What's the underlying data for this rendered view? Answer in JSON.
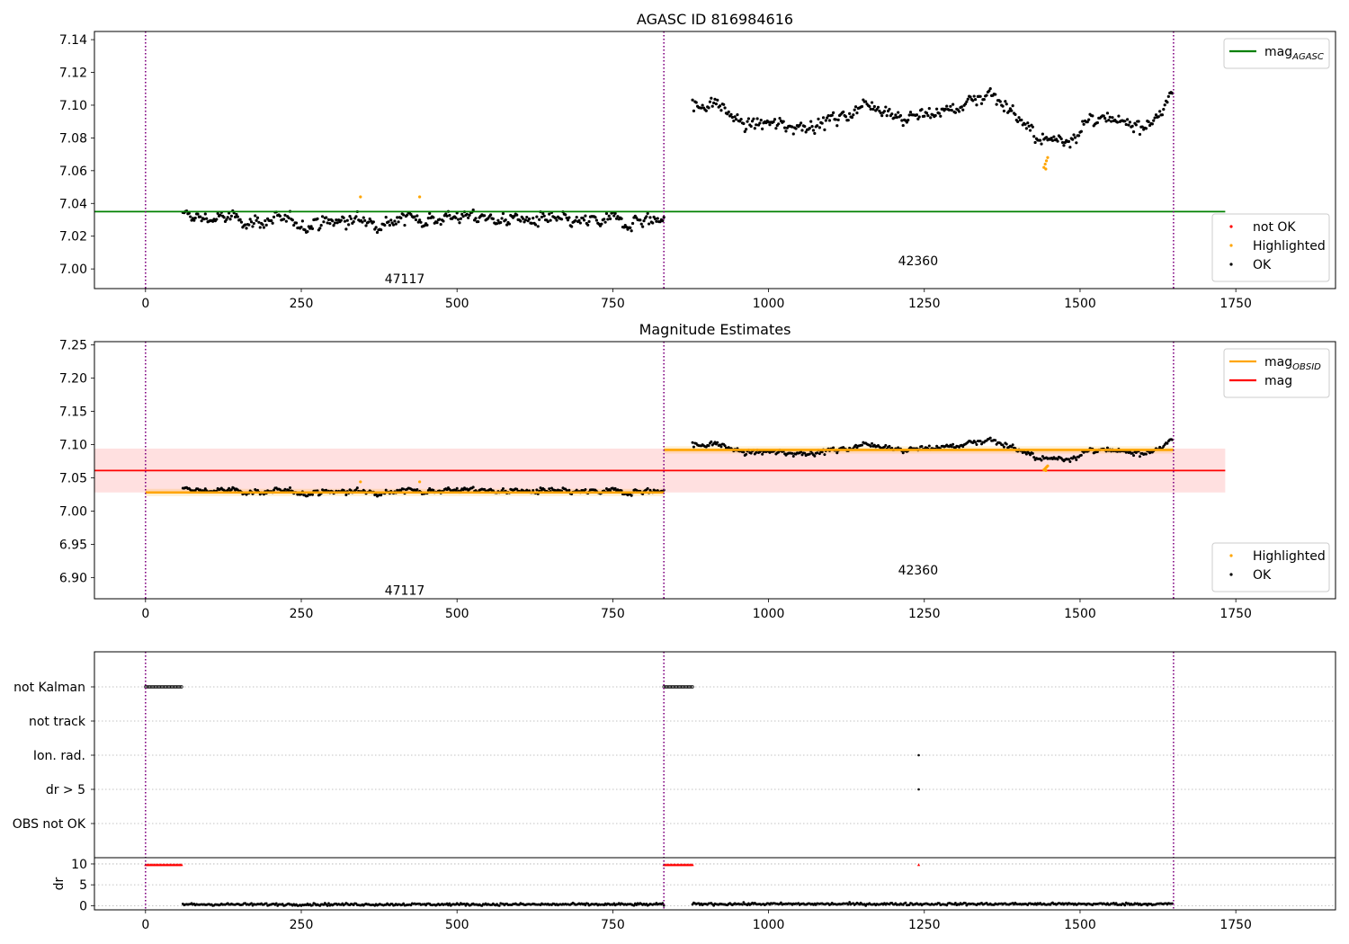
{
  "chart_data": [
    {
      "type": "scatter",
      "title": "AGASC ID 816984616",
      "xlim": [
        -82,
        1910
      ],
      "ylim": [
        6.988,
        7.145
      ],
      "x_ticks": [
        0,
        250,
        500,
        750,
        1000,
        1250,
        1500,
        1750
      ],
      "y_ticks": [
        7.0,
        7.02,
        7.04,
        7.06,
        7.08,
        7.1,
        7.12,
        7.14
      ],
      "y_tick_decimals": 2,
      "obs_boundaries": [
        0,
        832,
        1650
      ],
      "hline": {
        "name": "mag",
        "subscript": "AGASC",
        "value": 7.035,
        "x0": -82,
        "x1": 1733,
        "color": "#008000"
      },
      "obsid_labels": [
        {
          "text": "47117",
          "x": 416,
          "y": 6.994
        },
        {
          "text": "42360",
          "x": 1240,
          "y": 7.005
        }
      ],
      "segments": [
        {
          "x0": 60,
          "x1": 832,
          "center": [
            [
              60,
              7.032
            ],
            [
              250,
              7.028
            ],
            [
              500,
              7.032
            ],
            [
              700,
              7.028
            ],
            [
              832,
              7.031
            ]
          ],
          "noise": 0.005,
          "step": 2
        },
        {
          "x0": 878,
          "x1": 1648,
          "center": [
            [
              878,
              7.1
            ],
            [
              920,
              7.1
            ],
            [
              960,
              7.088
            ],
            [
              1050,
              7.088
            ],
            [
              1100,
              7.09
            ],
            [
              1165,
              7.102
            ],
            [
              1220,
              7.092
            ],
            [
              1300,
              7.098
            ],
            [
              1355,
              7.108
            ],
            [
              1395,
              7.096
            ],
            [
              1420,
              7.082
            ],
            [
              1445,
              7.078
            ],
            [
              1480,
              7.08
            ],
            [
              1520,
              7.091
            ],
            [
              1560,
              7.088
            ],
            [
              1610,
              7.09
            ],
            [
              1648,
              7.104
            ]
          ],
          "noise": 0.005,
          "step": 2
        }
      ],
      "highlighted": [
        {
          "x": 345,
          "y": 7.044
        },
        {
          "x": 440,
          "y": 7.044
        },
        {
          "x": 1442,
          "y": 7.062
        },
        {
          "x": 1444,
          "y": 7.064
        },
        {
          "x": 1446,
          "y": 7.066
        },
        {
          "x": 1448,
          "y": 7.068
        },
        {
          "x": 1445,
          "y": 7.061
        }
      ],
      "legend_top": {
        "placement": "upper right",
        "entries": [
          {
            "label": "mag",
            "subscript": "AGASC",
            "color": "#008000",
            "kind": "line"
          }
        ]
      },
      "legend_bottom": {
        "placement": "lower right",
        "entries": [
          {
            "label": "not OK",
            "color": "#ff0000",
            "kind": "dot"
          },
          {
            "label": "Highlighted",
            "color": "#ffa500",
            "kind": "dot"
          },
          {
            "label": "OK",
            "color": "#000000",
            "kind": "dot"
          }
        ]
      }
    },
    {
      "type": "scatter",
      "title": "Magnitude Estimates",
      "xlim": [
        -82,
        1910
      ],
      "ylim": [
        6.868,
        7.255
      ],
      "x_ticks": [
        0,
        250,
        500,
        750,
        1000,
        1250,
        1500,
        1750
      ],
      "y_ticks": [
        6.9,
        6.95,
        7.0,
        7.05,
        7.1,
        7.15,
        7.2,
        7.25
      ],
      "y_tick_decimals": 2,
      "obs_boundaries": [
        0,
        832,
        1650
      ],
      "mag_band": {
        "value": 7.061,
        "low": 7.028,
        "high": 7.094,
        "x0": -82,
        "x1": 1733
      },
      "obsid_mags": [
        {
          "x0": 0,
          "x1": 832,
          "value": 7.028
        },
        {
          "x0": 832,
          "x1": 1650,
          "value": 7.092
        }
      ],
      "obsid_labels": [
        {
          "text": "47117",
          "x": 416,
          "y": 6.881
        },
        {
          "text": "42360",
          "x": 1240,
          "y": 6.911
        }
      ],
      "legend_top": {
        "placement": "upper right",
        "entries": [
          {
            "label": "mag",
            "subscript": "OBSID",
            "color": "#ffa500",
            "kind": "line"
          },
          {
            "label": "mag",
            "subscript": "",
            "color": "#ff0000",
            "kind": "line"
          }
        ]
      },
      "legend_bottom": {
        "placement": "lower right",
        "entries": [
          {
            "label": "Highlighted",
            "color": "#ffa500",
            "kind": "dot"
          },
          {
            "label": "OK",
            "color": "#000000",
            "kind": "dot"
          }
        ]
      }
    },
    {
      "type": "scatter",
      "title": "",
      "xlim": [
        -82,
        1910
      ],
      "x_ticks": [
        0,
        250,
        500,
        750,
        1000,
        1250,
        1500,
        1750
      ],
      "obs_boundaries": [
        0,
        832,
        1650
      ],
      "flag_rows": [
        "not Kalman",
        "not track",
        "Ion. rad.",
        "dr > 5",
        "OBS not OK"
      ],
      "flag_runs": [
        {
          "row": "not Kalman",
          "x0": 0,
          "x1": 58
        },
        {
          "row": "not Kalman",
          "x0": 832,
          "x1": 878
        }
      ],
      "flag_points": [
        {
          "row": "Ion. rad.",
          "x": 1241
        },
        {
          "row": "dr > 5",
          "x": 1241
        }
      ],
      "dr_label": "dr",
      "dr_ylim": [
        -1,
        11.5
      ],
      "dr_ticks": [
        0,
        5,
        10
      ],
      "dr_high": [
        {
          "x0": 0,
          "x1": 58,
          "value": 9.8
        },
        {
          "x0": 832,
          "x1": 878,
          "value": 9.8
        },
        {
          "x0": 1241,
          "x1": 1241,
          "value": 9.8
        }
      ],
      "dr_low": [
        {
          "x0": 60,
          "x1": 832,
          "value": 0.3
        },
        {
          "x0": 878,
          "x1": 1648,
          "value": 0.4
        }
      ]
    }
  ]
}
